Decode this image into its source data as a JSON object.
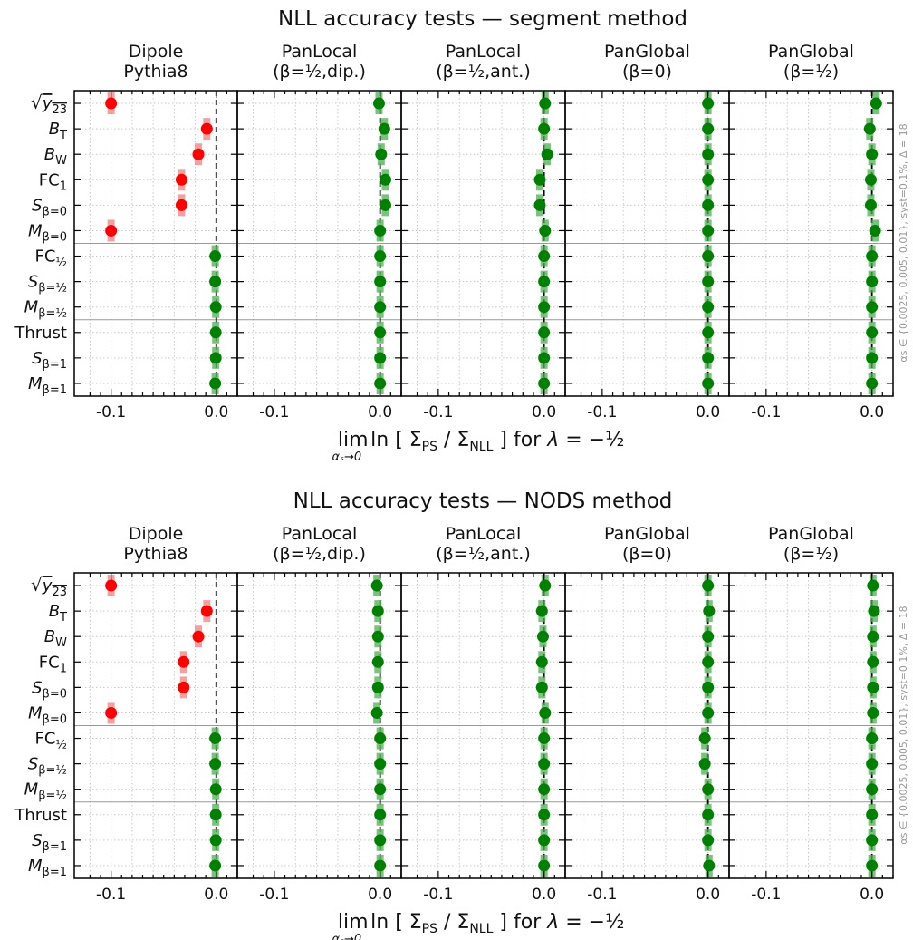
{
  "figure": {
    "x_axis_label": "lim_{αs→0} ln [ Σ_PS / Σ_NLL ]  for λ = −1/2",
    "side_note": "αs ∈ {0.0025, 0.005, 0.01}, syst=0.1%, Δ = 18",
    "colors": {
      "fail": "#ff0000",
      "pass": "#008000",
      "fail_band": "#f08080",
      "pass_band": "#4caf50"
    }
  },
  "chart_data": [
    {
      "type": "scatter",
      "title": "NLL accuracy tests — segment method",
      "panels": [
        "Dipole Pythia8",
        "PanLocal (β=1/2,dip.)",
        "PanLocal (β=1/2,ant.)",
        "PanGlobal (β=0)",
        "PanGlobal (β=1/2)"
      ],
      "observables": [
        "√y23",
        "B_T",
        "B_W",
        "FC_1",
        "S_β=0",
        "M_β=0",
        "FC_1/2",
        "S_β=1/2",
        "M_β=1/2",
        "Thrust",
        "S_β=1",
        "M_β=1"
      ],
      "x_ticks": [
        -0.1,
        0.0
      ],
      "xlim": [
        -0.135,
        0.02
      ],
      "grid": true,
      "series": [
        {
          "values": [
            -0.1,
            -0.009,
            -0.017,
            -0.033,
            -0.033,
            -0.1,
            -0.001,
            -0.001,
            -0.0005,
            -0.0005,
            -0.0005,
            -0.001
          ]
        },
        {
          "values": [
            -0.001,
            0.004,
            0.001,
            0.005,
            0.005,
            0.0,
            0.0,
            0.0,
            0.0,
            0.0,
            0.0,
            0.0
          ]
        },
        {
          "values": [
            0.001,
            0.0,
            0.003,
            -0.004,
            -0.004,
            0.001,
            0.0,
            0.0,
            0.0,
            0.0,
            0.0,
            0.0
          ]
        },
        {
          "values": [
            0.0,
            0.0,
            0.0,
            0.0,
            0.0,
            0.0,
            0.0,
            0.0,
            0.0,
            0.0,
            0.0,
            0.0
          ]
        },
        {
          "values": [
            0.004,
            -0.002,
            0.0,
            -0.001,
            -0.001,
            0.003,
            0.0,
            0.0,
            0.0,
            0.0,
            0.0,
            0.0
          ]
        }
      ]
    },
    {
      "type": "scatter",
      "title": "NLL accuracy tests — NODS method",
      "panels": [
        "Dipole Pythia8",
        "PanLocal (β=1/2,dip.)",
        "PanLocal (β=1/2,ant.)",
        "PanGlobal (β=0)",
        "PanGlobal (β=1/2)"
      ],
      "observables": [
        "√y23",
        "B_T",
        "B_W",
        "FC_1",
        "S_β=0",
        "M_β=0",
        "FC_1/2",
        "S_β=1/2",
        "M_β=1/2",
        "Thrust",
        "S_β=1",
        "M_β=1"
      ],
      "x_ticks": [
        -0.1,
        0.0
      ],
      "xlim": [
        -0.135,
        0.02
      ],
      "grid": true,
      "series": [
        {
          "values": [
            -0.1,
            -0.009,
            -0.017,
            -0.031,
            -0.031,
            -0.1,
            -0.001,
            -0.001,
            -0.0005,
            -0.0005,
            -0.0005,
            -0.001
          ]
        },
        {
          "values": [
            -0.003,
            -0.002,
            -0.002,
            -0.002,
            -0.002,
            -0.003,
            0.0,
            0.0,
            0.0,
            0.0,
            0.0,
            0.0
          ]
        },
        {
          "values": [
            0.001,
            -0.002,
            -0.001,
            -0.002,
            -0.002,
            0.001,
            0.0,
            0.0,
            0.0,
            0.0,
            0.0,
            0.0
          ]
        },
        {
          "values": [
            0.0,
            0.001,
            0.0,
            0.0,
            0.0,
            0.0,
            -0.003,
            -0.003,
            0.0,
            0.0,
            0.0,
            0.001
          ]
        },
        {
          "values": [
            0.001,
            0.002,
            0.001,
            0.001,
            0.001,
            0.001,
            0.0,
            0.0,
            0.0,
            0.0,
            0.0,
            0.0
          ]
        }
      ]
    }
  ]
}
